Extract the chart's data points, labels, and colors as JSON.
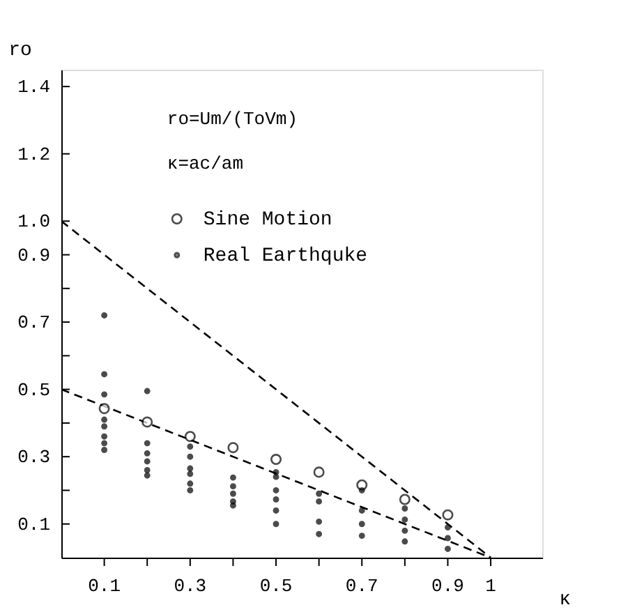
{
  "chart_data": {
    "type": "scatter",
    "xlabel": "κ",
    "ylabel": "ro",
    "annotations": [
      "ro=Um/(ToVm)",
      "κ=ac/am"
    ],
    "xlim": [
      0,
      1.12
    ],
    "ylim": [
      0,
      1.45
    ],
    "xticks": [
      {
        "value": 0.1,
        "label": "0.1"
      },
      {
        "value": 0.2,
        "label": null
      },
      {
        "value": 0.3,
        "label": "0.3"
      },
      {
        "value": 0.4,
        "label": null
      },
      {
        "value": 0.5,
        "label": "0.5"
      },
      {
        "value": 0.6,
        "label": null
      },
      {
        "value": 0.7,
        "label": "0.7"
      },
      {
        "value": 0.8,
        "label": null
      },
      {
        "value": 0.9,
        "label": "0.9"
      },
      {
        "value": 1.0,
        "label": "1"
      }
    ],
    "yticks": [
      {
        "value": 0.1,
        "label": "0.1"
      },
      {
        "value": 0.2,
        "label": null
      },
      {
        "value": 0.3,
        "label": "0.3"
      },
      {
        "value": 0.4,
        "label": null
      },
      {
        "value": 0.5,
        "label": "0.5"
      },
      {
        "value": 0.6,
        "label": null
      },
      {
        "value": 0.7,
        "label": "0.7"
      },
      {
        "value": 0.8,
        "label": null
      },
      {
        "value": 0.9,
        "label": "0.9"
      },
      {
        "value": 1.0,
        "label": "1.0"
      },
      {
        "value": 1.2,
        "label": "1.2"
      },
      {
        "value": 1.4,
        "label": "1.4"
      }
    ],
    "grid": false,
    "legend": "top",
    "series": [
      {
        "name": "Sine Motion",
        "marker": "circle",
        "color": "#000000",
        "x": [
          0.1,
          0.2,
          0.3,
          0.4,
          0.5,
          0.6,
          0.7,
          0.8,
          0.9
        ],
        "values": [
          0.443,
          0.403,
          0.36,
          0.327,
          0.292,
          0.254,
          0.216,
          0.173,
          0.127
        ]
      },
      {
        "name": "Real Earthquke",
        "marker": "circle",
        "color": "#000000",
        "x": [
          0.1,
          0.1,
          0.1,
          0.1,
          0.1,
          0.1,
          0.1,
          0.1,
          0.2,
          0.2,
          0.2,
          0.2,
          0.2,
          0.2,
          0.3,
          0.3,
          0.3,
          0.3,
          0.3,
          0.3,
          0.4,
          0.4,
          0.4,
          0.4,
          0.4,
          0.5,
          0.5,
          0.5,
          0.5,
          0.5,
          0.5,
          0.6,
          0.6,
          0.6,
          0.6,
          0.7,
          0.7,
          0.7,
          0.7,
          0.8,
          0.8,
          0.8,
          0.8,
          0.9,
          0.9,
          0.9
        ],
        "values": [
          0.72,
          0.545,
          0.485,
          0.41,
          0.39,
          0.36,
          0.34,
          0.32,
          0.495,
          0.34,
          0.31,
          0.286,
          0.26,
          0.244,
          0.33,
          0.3,
          0.265,
          0.249,
          0.22,
          0.2,
          0.238,
          0.212,
          0.19,
          0.167,
          0.155,
          0.254,
          0.24,
          0.2,
          0.173,
          0.14,
          0.1,
          0.19,
          0.167,
          0.107,
          0.07,
          0.2,
          0.14,
          0.1,
          0.065,
          0.146,
          0.113,
          0.08,
          0.048,
          0.09,
          0.058,
          0.026
        ]
      },
      {
        "type": "line",
        "line_style": "dashed",
        "color": "#000000",
        "x": [
          0,
          1
        ],
        "values": [
          1.0,
          0
        ]
      },
      {
        "type": "line",
        "line_style": "dashed",
        "color": "#000000",
        "x": [
          0,
          1
        ],
        "values": [
          0.5,
          0
        ]
      }
    ]
  }
}
